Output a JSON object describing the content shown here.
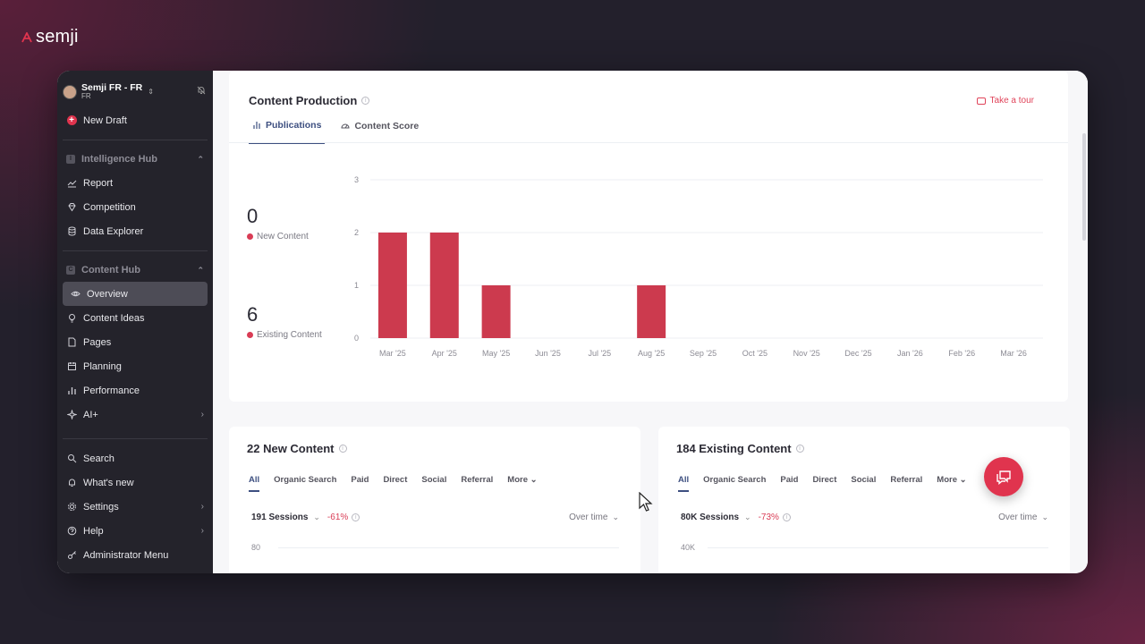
{
  "brand": {
    "name": "semji"
  },
  "sidebar": {
    "workspace": {
      "name": "Semji FR - FR",
      "sub": "FR"
    },
    "new_draft": "New Draft",
    "sections": [
      {
        "label": "Intelligence Hub",
        "items": [
          {
            "label": "Report",
            "icon": "chart-line-icon"
          },
          {
            "label": "Competition",
            "icon": "diamond-icon"
          },
          {
            "label": "Data Explorer",
            "icon": "database-icon"
          }
        ]
      },
      {
        "label": "Content Hub",
        "items": [
          {
            "label": "Overview",
            "icon": "eye-icon"
          },
          {
            "label": "Content Ideas",
            "icon": "lightbulb-icon"
          },
          {
            "label": "Pages",
            "icon": "page-icon"
          },
          {
            "label": "Planning",
            "icon": "calendar-icon"
          },
          {
            "label": "Performance",
            "icon": "bar-chart-icon"
          },
          {
            "label": "AI+",
            "icon": "sparkle-icon"
          }
        ]
      }
    ],
    "bottom": [
      {
        "label": "Search"
      },
      {
        "label": "What's new"
      },
      {
        "label": "Settings"
      },
      {
        "label": "Help"
      },
      {
        "label": "Administrator Menu"
      }
    ]
  },
  "content_production": {
    "title": "Content Production",
    "tour": "Take a tour",
    "tabs": [
      "Publications",
      "Content Score"
    ],
    "stats": [
      {
        "value": "0",
        "label": "New Content"
      },
      {
        "value": "6",
        "label": "Existing Content"
      }
    ]
  },
  "chart_data": {
    "type": "bar",
    "categories": [
      "Mar '25",
      "Apr '25",
      "May '25",
      "Jun '25",
      "Jul '25",
      "Aug '25",
      "Sep '25",
      "Oct '25",
      "Nov '25",
      "Dec '25",
      "Jan '26",
      "Feb '26",
      "Mar '26"
    ],
    "values": [
      2,
      2,
      1,
      0,
      0,
      1,
      0,
      0,
      0,
      0,
      0,
      0,
      0
    ],
    "ylim": [
      0,
      3
    ],
    "yticks": [
      0,
      1,
      2,
      3
    ],
    "grid": true,
    "bar_color": "#cc3a4e"
  },
  "new_content": {
    "title": "22 New Content",
    "channels": [
      "All",
      "Organic Search",
      "Paid",
      "Direct",
      "Social",
      "Referral",
      "More"
    ],
    "sessions": "191 Sessions",
    "delta": "-61%",
    "range": "Over time",
    "y_top": "80"
  },
  "existing_content": {
    "title": "184 Existing Content",
    "channels": [
      "All",
      "Organic Search",
      "Paid",
      "Direct",
      "Social",
      "Referral",
      "More"
    ],
    "sessions": "80K Sessions",
    "delta": "-73%",
    "range": "Over time",
    "y_top": "40K"
  },
  "colors": {
    "accent": "#e0344e",
    "active_tab": "#3d4f80",
    "sidebar_bg": "#24232b"
  }
}
